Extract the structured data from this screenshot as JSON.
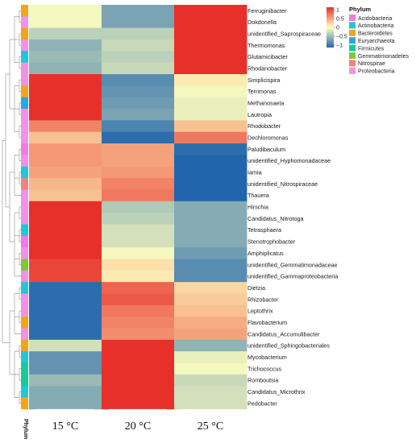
{
  "chart_data": {
    "type": "heatmap",
    "columns": [
      "15 °C",
      "20 °C",
      "25 °C"
    ],
    "color_scale": {
      "min": -1,
      "max": 1,
      "ticks": [
        "1",
        "0.5",
        "0",
        "−0.5",
        "−1"
      ],
      "low_color": "#2166ac",
      "mid_color": "#ffffbf",
      "high_color": "#e8302a"
    },
    "row_annotation_title": "Phylum",
    "phyla": [
      {
        "name": "Acidobacteria",
        "color": "#f07be6"
      },
      {
        "name": "Actinobacteria",
        "color": "#1ec8d8"
      },
      {
        "name": "Bacteroidetes",
        "color": "#f4a418"
      },
      {
        "name": "Euryarchaeota",
        "color": "#2aa6e0"
      },
      {
        "name": "Firmicutes",
        "color": "#19c99a"
      },
      {
        "name": "Gemmatimonadetes",
        "color": "#7ec83a"
      },
      {
        "name": "Nitrospirae",
        "color": "#f6837a"
      },
      {
        "name": "Proteobacteria",
        "color": "#f291e6"
      }
    ],
    "rows": [
      {
        "label": "Ferruginibacter",
        "phylum": "Bacteroidetes",
        "values": [
          -0.05,
          -0.6,
          1.0
        ]
      },
      {
        "label": "Dokdonella",
        "phylum": "Proteobacteria",
        "values": [
          -0.05,
          -0.6,
          1.0
        ]
      },
      {
        "label": "unidentified_Saprospiraceae",
        "phylum": "Bacteroidetes",
        "values": [
          -0.3,
          -0.3,
          1.0
        ]
      },
      {
        "label": "Thermomonas",
        "phylum": "Proteobacteria",
        "values": [
          -0.5,
          -0.25,
          1.0
        ]
      },
      {
        "label": "Glutamicibacter",
        "phylum": "Actinobacteria",
        "values": [
          -0.45,
          -0.3,
          1.0
        ]
      },
      {
        "label": "Rhodanobacter",
        "phylum": "Proteobacteria",
        "values": [
          -0.5,
          -0.25,
          1.0
        ]
      },
      {
        "label": "Simplicispira",
        "phylum": "Proteobacteria",
        "values": [
          1.0,
          -0.75,
          0.1
        ]
      },
      {
        "label": "Terrimonas",
        "phylum": "Bacteroidetes",
        "values": [
          1.0,
          -0.7,
          -0.05
        ]
      },
      {
        "label": "Methanosaeta",
        "phylum": "Euryarchaeota",
        "values": [
          1.0,
          -0.65,
          -0.1
        ]
      },
      {
        "label": "Lautropia",
        "phylum": "Proteobacteria",
        "values": [
          1.0,
          -0.6,
          -0.1
        ]
      },
      {
        "label": "Rhodobacter",
        "phylum": "Proteobacteria",
        "values": [
          0.6,
          -0.8,
          0.3
        ]
      },
      {
        "label": "Dechloromonas",
        "phylum": "Proteobacteria",
        "values": [
          0.3,
          -0.95,
          0.65
        ]
      },
      {
        "label": "Paludibaculum",
        "phylum": "Acidobacteria",
        "values": [
          0.5,
          0.45,
          -0.95
        ]
      },
      {
        "label": "unidentified_Hyphomonadaceae",
        "phylum": "Proteobacteria",
        "values": [
          0.5,
          0.45,
          -1.0
        ]
      },
      {
        "label": "Iamia",
        "phylum": "Actinobacteria",
        "values": [
          0.45,
          0.5,
          -1.0
        ]
      },
      {
        "label": "unidentified_Nitrospiraceae",
        "phylum": "Nitrospirae",
        "values": [
          0.35,
          0.6,
          -1.0
        ]
      },
      {
        "label": "Thauera",
        "phylum": "Proteobacteria",
        "values": [
          0.3,
          0.65,
          -1.0
        ]
      },
      {
        "label": "Hirschia",
        "phylum": "Proteobacteria",
        "values": [
          1.0,
          -0.35,
          -0.55
        ]
      },
      {
        "label": "Candidatus_Nitrotoga",
        "phylum": "Proteobacteria",
        "values": [
          1.0,
          -0.3,
          -0.55
        ]
      },
      {
        "label": "Tetrasphaera",
        "phylum": "Actinobacteria",
        "values": [
          1.0,
          -0.2,
          -0.55
        ]
      },
      {
        "label": "Stenotrophobacter",
        "phylum": "Acidobacteria",
        "values": [
          1.0,
          -0.2,
          -0.55
        ]
      },
      {
        "label": "Amphiplicatus",
        "phylum": "Proteobacteria",
        "values": [
          1.0,
          -0.05,
          -0.65
        ]
      },
      {
        "label": "unidentified_Gemmatimonadaceae",
        "phylum": "Gemmatimonadetes",
        "values": [
          0.9,
          0.15,
          -0.75
        ]
      },
      {
        "label": "unidentified_Gammaproteobacteria",
        "phylum": "Proteobacteria",
        "values": [
          0.9,
          0.1,
          -0.75
        ]
      },
      {
        "label": "Dietzia",
        "phylum": "Actinobacteria",
        "values": [
          -0.95,
          0.75,
          0.2
        ]
      },
      {
        "label": "Rhizobacter",
        "phylum": "Proteobacteria",
        "values": [
          -0.95,
          0.8,
          0.25
        ]
      },
      {
        "label": "Leptothrix",
        "phylum": "Proteobacteria",
        "values": [
          -0.95,
          0.65,
          0.3
        ]
      },
      {
        "label": "Flavobacterium",
        "phylum": "Bacteroidetes",
        "values": [
          -0.95,
          0.6,
          0.4
        ]
      },
      {
        "label": "Candidatus_Accumulibacter",
        "phylum": "Proteobacteria",
        "values": [
          -0.95,
          0.55,
          0.45
        ]
      },
      {
        "label": "unidentified_Sphingobacteriales",
        "phylum": "Bacteroidetes",
        "values": [
          -0.2,
          1.0,
          -0.5
        ]
      },
      {
        "label": "Mycobacterium",
        "phylum": "Actinobacteria",
        "values": [
          -0.7,
          1.0,
          -0.1
        ]
      },
      {
        "label": "Trichococcus",
        "phylum": "Firmicutes",
        "values": [
          -0.7,
          1.0,
          -0.05
        ]
      },
      {
        "label": "Romboutsia",
        "phylum": "Firmicutes",
        "values": [
          -0.45,
          1.0,
          -0.25
        ]
      },
      {
        "label": "Candidatus_Microthrix",
        "phylum": "Actinobacteria",
        "values": [
          -0.55,
          1.0,
          -0.2
        ]
      },
      {
        "label": "Pedobacter",
        "phylum": "Bacteroidetes",
        "values": [
          -0.55,
          1.0,
          -0.2
        ]
      }
    ]
  }
}
